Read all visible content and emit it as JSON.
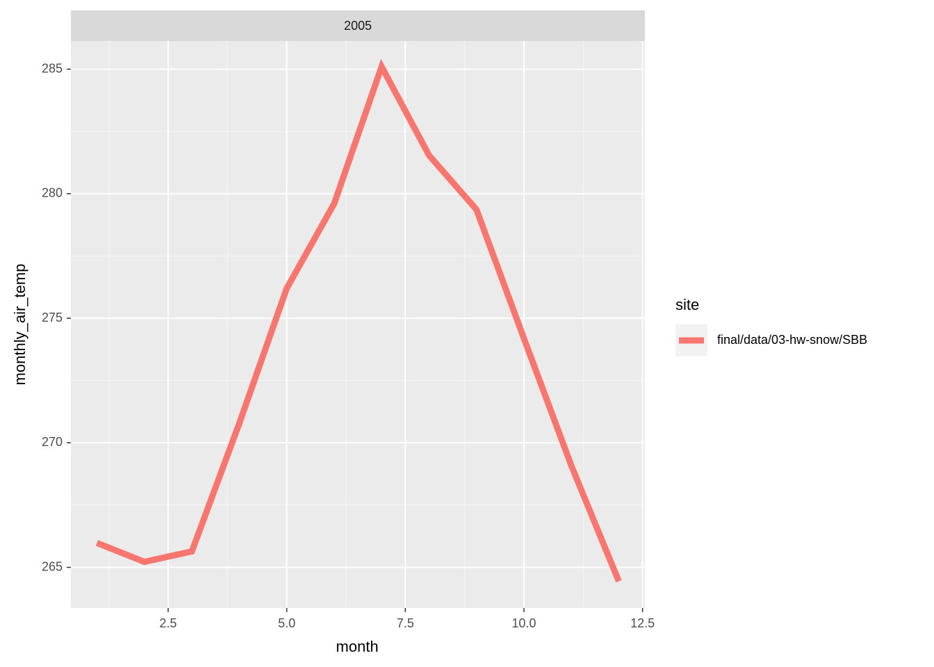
{
  "chart_data": {
    "type": "line",
    "strip": "2005",
    "x_label": "month",
    "y_label": "monthly_air_temp",
    "x": [
      1,
      2,
      3,
      4,
      5,
      6,
      7,
      8,
      9,
      10,
      11,
      12
    ],
    "series": [
      {
        "name": "final/data/03-hw-snow/SBB",
        "color": "#F8766D",
        "values": [
          265.98,
          265.22,
          265.64,
          270.78,
          276.2,
          279.6,
          285.1,
          281.54,
          279.36,
          274.19,
          269.08,
          264.44
        ]
      }
    ],
    "legend_title": "site",
    "xlim": [
      0.45,
      12.55
    ],
    "xticks": [
      {
        "value": 2.5,
        "label": "2.5"
      },
      {
        "value": 5,
        "label": "5.0"
      },
      {
        "value": 7.5,
        "label": "7.5"
      },
      {
        "value": 10,
        "label": "10.0"
      },
      {
        "value": 12.5,
        "label": "12.5"
      }
    ],
    "ylim": [
      263.37,
      286.13
    ],
    "yticks": [
      265,
      270,
      275,
      280,
      285
    ],
    "grid": true,
    "legend": "right"
  }
}
